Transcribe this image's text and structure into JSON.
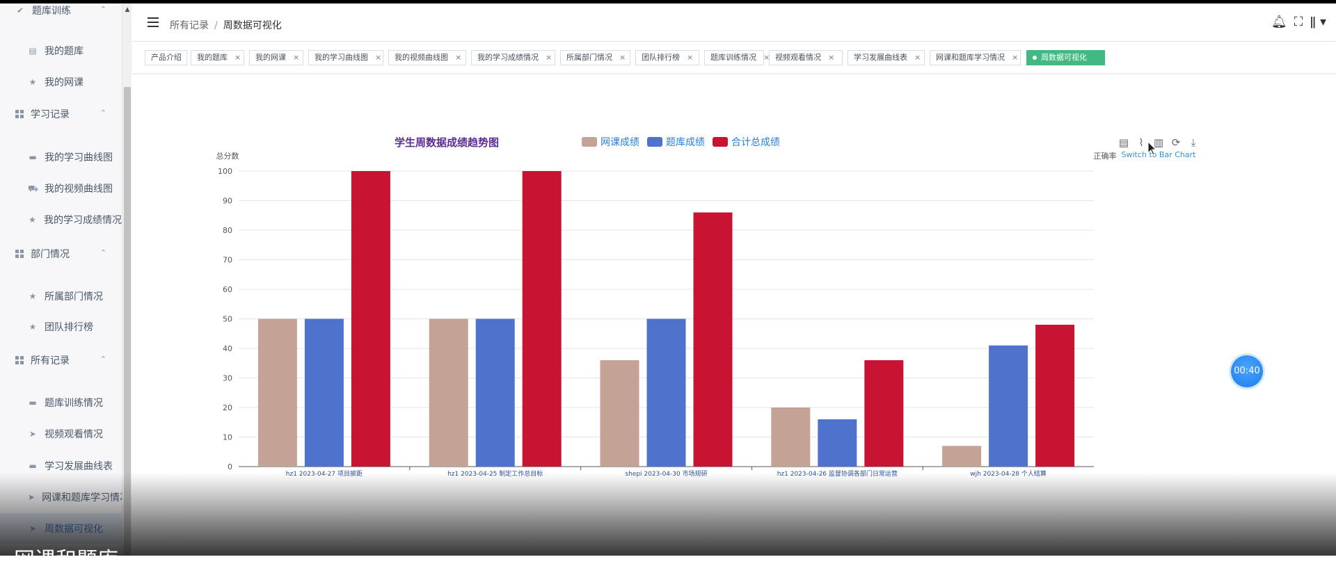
{
  "sidebar": {
    "items": [
      {
        "label": "题库训练",
        "type": "group",
        "icon": "check-circle-icon"
      },
      {
        "label": "我的题库",
        "type": "item",
        "icon": "document-icon"
      },
      {
        "label": "我的网课",
        "type": "item",
        "icon": "star-icon"
      },
      {
        "label": "学习记录",
        "type": "group",
        "icon": "grid-icon"
      },
      {
        "label": "我的学习曲线图",
        "type": "item",
        "icon": "briefcase-icon"
      },
      {
        "label": "我的视频曲线图",
        "type": "item",
        "icon": "truck-icon"
      },
      {
        "label": "我的学习成绩情况",
        "type": "item",
        "icon": "star-icon"
      },
      {
        "label": "部门情况",
        "type": "group",
        "icon": "grid-icon"
      },
      {
        "label": "所属部门情况",
        "type": "item",
        "icon": "star-icon"
      },
      {
        "label": "团队排行榜",
        "type": "item",
        "icon": "star-icon"
      },
      {
        "label": "所有记录",
        "type": "group",
        "icon": "grid-icon"
      },
      {
        "label": "题库训练情况",
        "type": "item",
        "icon": "briefcase-icon"
      },
      {
        "label": "视频观看情况",
        "type": "item",
        "icon": "send-icon"
      },
      {
        "label": "学习发展曲线表",
        "type": "item",
        "icon": "briefcase-icon"
      },
      {
        "label": "网课和题库学习情况",
        "type": "item",
        "icon": "send-icon"
      },
      {
        "label": "周数据可视化",
        "type": "item",
        "icon": "send-icon",
        "active": true
      }
    ],
    "bottom_caption": "网课和题库"
  },
  "header": {
    "breadcrumb": [
      "所有记录",
      "周数据可视化"
    ]
  },
  "tags": [
    {
      "label": "产品介绍",
      "closable": false
    },
    {
      "label": "我的题库",
      "closable": true
    },
    {
      "label": "我的网课",
      "closable": true
    },
    {
      "label": "我的学习曲线图",
      "closable": true
    },
    {
      "label": "我的视频曲线图",
      "closable": true
    },
    {
      "label": "我的学习成绩情况",
      "closable": true
    },
    {
      "label": "所属部门情况",
      "closable": true
    },
    {
      "label": "团队排行榜",
      "closable": true
    },
    {
      "label": "题库训练情况",
      "closable": true
    },
    {
      "label": "视频观看情况",
      "closable": true
    },
    {
      "label": "学习发展曲线表",
      "closable": true
    },
    {
      "label": "网课和题库学习情况",
      "closable": true
    },
    {
      "label": "周数据可视化",
      "closable": false,
      "active": true
    }
  ],
  "toolbox": {
    "tooltip": "Switch to Bar Chart"
  },
  "timer": "00:40",
  "chart_data": {
    "type": "bar",
    "title": "学生周数据成绩趋势图",
    "ylabel": "总分数",
    "ylabel_right": "正确率",
    "ylim": [
      0,
      100
    ],
    "yticks": [
      0,
      10,
      20,
      30,
      40,
      50,
      60,
      70,
      80,
      90,
      100
    ],
    "categories": [
      "hz1 2023-04-27 项目披距",
      "hz1 2023-04-25 制定工作总目标",
      "shepi 2023-04-30 市场规研",
      "hz1 2023-04-26 监督协调各部门日常运营",
      "wjh 2023-04-28 个人结算"
    ],
    "series": [
      {
        "name": "网课成绩",
        "color": "#c4a396",
        "values": [
          50,
          50,
          36,
          20,
          7
        ]
      },
      {
        "name": "题库成绩",
        "color": "#4f73cc",
        "values": [
          50,
          50,
          50,
          16,
          41
        ]
      },
      {
        "name": "合计总成绩",
        "color": "#c81432",
        "values": [
          100,
          100,
          86,
          36,
          48
        ]
      }
    ],
    "legend": "top",
    "grid": true
  }
}
